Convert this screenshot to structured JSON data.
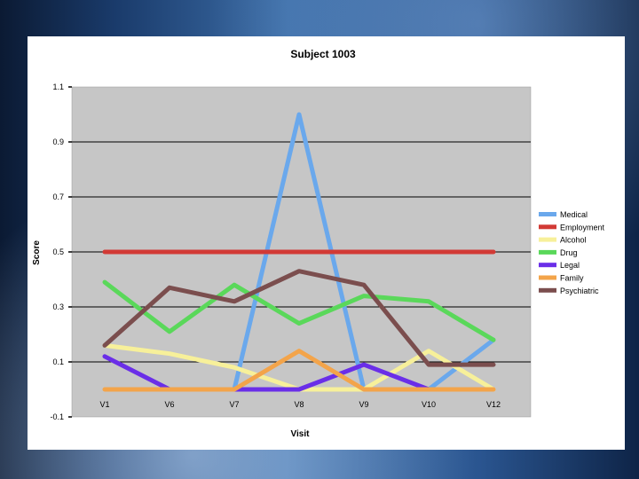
{
  "chart_data": {
    "type": "line",
    "title": "Subject 1003",
    "xlabel": "Visit",
    "ylabel": "Score",
    "categories": [
      "V1",
      "V6",
      "V7",
      "V8",
      "V9",
      "V10",
      "V12"
    ],
    "y_ticks": [
      "1.1",
      "0.9",
      "0.7",
      "0.5",
      "0.3",
      "0.1",
      "-0.1"
    ],
    "ylim": [
      -0.1,
      1.1
    ],
    "grid": "horizontal",
    "legend_position": "right",
    "series": [
      {
        "name": "Medical",
        "color": "#6aa8ec",
        "values": [
          null,
          null,
          0.0,
          1.0,
          0.0,
          0.0,
          0.18
        ]
      },
      {
        "name": "Employment",
        "color": "#d23a35",
        "values": [
          0.5,
          0.5,
          0.5,
          0.5,
          0.5,
          0.5,
          0.5
        ]
      },
      {
        "name": "Alcohol",
        "color": "#f7f09a",
        "values": [
          0.16,
          0.13,
          0.08,
          0.0,
          0.0,
          0.14,
          0.0
        ]
      },
      {
        "name": "Drug",
        "color": "#5ad85a",
        "values": [
          0.39,
          0.21,
          0.38,
          0.24,
          0.34,
          0.32,
          0.18
        ]
      },
      {
        "name": "Legal",
        "color": "#6a2ee8",
        "values": [
          0.12,
          0.0,
          0.0,
          0.0,
          0.09,
          0.0,
          null
        ]
      },
      {
        "name": "Family",
        "color": "#f3a44a",
        "values": [
          0.0,
          0.0,
          0.0,
          0.14,
          0.0,
          0.0,
          0.0
        ]
      },
      {
        "name": "Psychiatric",
        "color": "#7b4e4e",
        "values": [
          0.16,
          0.37,
          0.32,
          0.43,
          0.38,
          0.09,
          0.09
        ]
      }
    ]
  }
}
